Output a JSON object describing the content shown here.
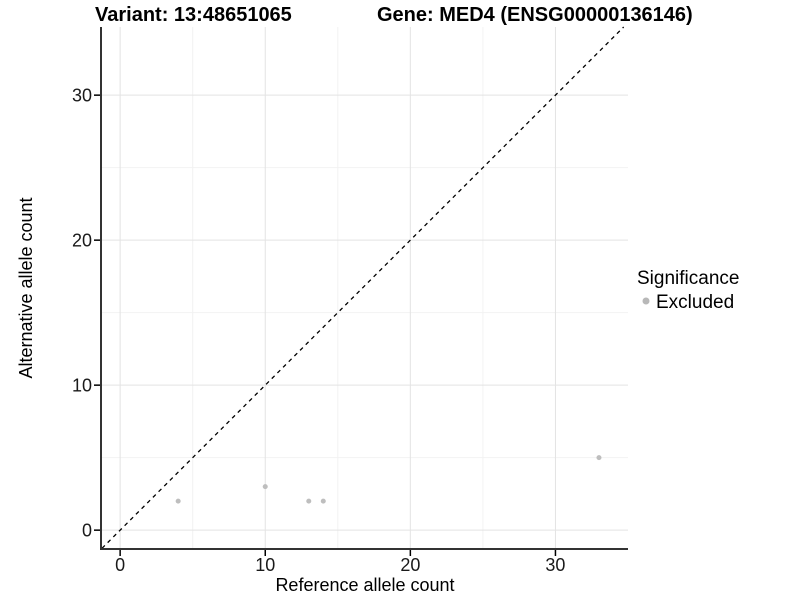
{
  "chart_data": {
    "type": "scatter",
    "titles": {
      "left": "Variant: 13:48651065",
      "right": "Gene: MED4 (ENSG00000136146)"
    },
    "xlabel": "Reference allele count",
    "ylabel": "Alternative allele count",
    "xlim": [
      -1.25,
      35.0
    ],
    "ylim": [
      -1.3,
      34.7
    ],
    "x_major_ticks": [
      0,
      10,
      20,
      30
    ],
    "y_major_ticks": [
      0,
      10,
      20,
      30
    ],
    "x_minor_gridlines": [
      5,
      15,
      25
    ],
    "y_minor_gridlines": [
      5,
      15,
      25
    ],
    "grid": {
      "major_color": "#e3e3e3",
      "minor_color": "#f2f2f2"
    },
    "axis_line_color": "#333333",
    "identity_line": {
      "slope": 1,
      "intercept": 0,
      "style": "dashed",
      "color": "#000000"
    },
    "series": [
      {
        "name": "Excluded",
        "color": "#bebebe",
        "marker": "circle",
        "points": [
          [
            4,
            2
          ],
          [
            10,
            3
          ],
          [
            13,
            2
          ],
          [
            14,
            2
          ],
          [
            33,
            5
          ]
        ]
      }
    ],
    "legend": {
      "title": "Significance",
      "position": "right",
      "entries": [
        {
          "label": "Excluded",
          "color": "#b8b8b8"
        }
      ]
    }
  }
}
